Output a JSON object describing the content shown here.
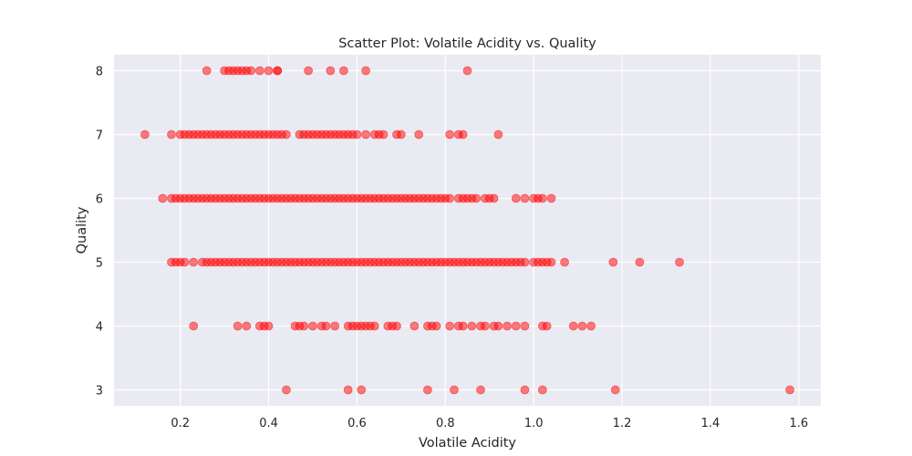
{
  "chart_data": {
    "type": "scatter",
    "title": "Scatter Plot: Volatile Acidity vs. Quality",
    "xlabel": "Volatile Acidity",
    "ylabel": "Quality",
    "xlim": [
      0.05,
      1.65
    ],
    "ylim": [
      2.75,
      8.25
    ],
    "xticks": [
      "0.2",
      "0.4",
      "0.6",
      "0.8",
      "1.0",
      "1.2",
      "1.4",
      "1.6"
    ],
    "yticks": [
      "3",
      "4",
      "5",
      "6",
      "7",
      "8"
    ],
    "grid": true,
    "background": "#eaeaf2",
    "point_color": "#ff0000",
    "point_alpha": 0.5,
    "series": [
      {
        "quality": 8,
        "x": [
          0.26,
          0.3,
          0.31,
          0.32,
          0.33,
          0.34,
          0.35,
          0.36,
          0.38,
          0.4,
          0.42,
          0.42,
          0.49,
          0.54,
          0.57,
          0.62,
          0.85
        ]
      },
      {
        "quality": 7,
        "x": [
          0.12,
          0.18,
          0.2,
          0.21,
          0.22,
          0.23,
          0.24,
          0.25,
          0.26,
          0.27,
          0.28,
          0.29,
          0.3,
          0.31,
          0.32,
          0.33,
          0.34,
          0.35,
          0.36,
          0.37,
          0.38,
          0.39,
          0.4,
          0.41,
          0.42,
          0.43,
          0.44,
          0.47,
          0.48,
          0.49,
          0.5,
          0.51,
          0.52,
          0.53,
          0.54,
          0.55,
          0.56,
          0.57,
          0.58,
          0.59,
          0.6,
          0.62,
          0.64,
          0.65,
          0.66,
          0.69,
          0.7,
          0.74,
          0.81,
          0.83,
          0.84,
          0.92
        ]
      },
      {
        "quality": 6,
        "x": [
          0.16,
          0.18,
          0.19,
          0.2,
          0.21,
          0.22,
          0.23,
          0.24,
          0.25,
          0.26,
          0.27,
          0.28,
          0.29,
          0.3,
          0.31,
          0.32,
          0.33,
          0.34,
          0.35,
          0.36,
          0.37,
          0.38,
          0.39,
          0.4,
          0.41,
          0.42,
          0.43,
          0.44,
          0.45,
          0.46,
          0.47,
          0.48,
          0.49,
          0.5,
          0.51,
          0.52,
          0.53,
          0.54,
          0.55,
          0.56,
          0.57,
          0.58,
          0.59,
          0.6,
          0.61,
          0.62,
          0.63,
          0.64,
          0.65,
          0.66,
          0.67,
          0.68,
          0.69,
          0.7,
          0.71,
          0.72,
          0.73,
          0.74,
          0.75,
          0.76,
          0.77,
          0.78,
          0.79,
          0.8,
          0.81,
          0.83,
          0.84,
          0.85,
          0.86,
          0.87,
          0.89,
          0.9,
          0.91,
          0.96,
          0.98,
          1.0,
          1.01,
          1.02,
          1.04
        ]
      },
      {
        "quality": 5,
        "x": [
          0.18,
          0.19,
          0.2,
          0.21,
          0.23,
          0.25,
          0.26,
          0.27,
          0.28,
          0.29,
          0.3,
          0.31,
          0.32,
          0.33,
          0.34,
          0.35,
          0.36,
          0.37,
          0.38,
          0.39,
          0.4,
          0.41,
          0.42,
          0.43,
          0.44,
          0.45,
          0.46,
          0.47,
          0.48,
          0.49,
          0.5,
          0.51,
          0.52,
          0.53,
          0.54,
          0.55,
          0.56,
          0.57,
          0.58,
          0.59,
          0.6,
          0.61,
          0.62,
          0.63,
          0.64,
          0.65,
          0.66,
          0.67,
          0.68,
          0.69,
          0.7,
          0.71,
          0.72,
          0.73,
          0.74,
          0.75,
          0.76,
          0.77,
          0.78,
          0.79,
          0.8,
          0.81,
          0.82,
          0.83,
          0.84,
          0.85,
          0.86,
          0.87,
          0.88,
          0.89,
          0.9,
          0.91,
          0.92,
          0.93,
          0.94,
          0.95,
          0.96,
          0.97,
          0.98,
          1.0,
          1.01,
          1.02,
          1.03,
          1.04,
          1.07,
          1.18,
          1.24,
          1.33
        ]
      },
      {
        "quality": 4,
        "x": [
          0.23,
          0.33,
          0.35,
          0.38,
          0.39,
          0.4,
          0.46,
          0.47,
          0.48,
          0.5,
          0.52,
          0.53,
          0.55,
          0.58,
          0.59,
          0.6,
          0.61,
          0.62,
          0.63,
          0.64,
          0.67,
          0.68,
          0.69,
          0.73,
          0.76,
          0.77,
          0.78,
          0.81,
          0.83,
          0.84,
          0.86,
          0.88,
          0.89,
          0.91,
          0.92,
          0.94,
          0.96,
          0.98,
          1.02,
          1.03,
          1.09,
          1.11,
          1.13
        ]
      },
      {
        "quality": 3,
        "x": [
          0.44,
          0.58,
          0.61,
          0.76,
          0.82,
          0.88,
          0.98,
          1.02,
          1.185,
          1.58
        ]
      }
    ]
  }
}
